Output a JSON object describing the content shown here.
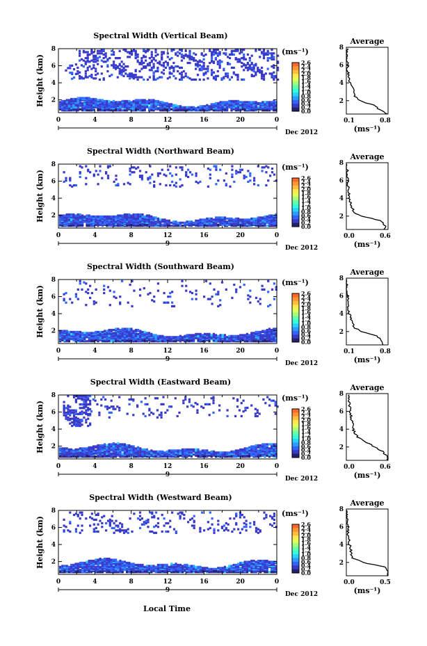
{
  "x_axis_label": "Local Time",
  "date_label": "Dec 2012",
  "colorbar": {
    "unit": "(ms⁻¹)",
    "ticks": [
      "2.6",
      "2.4",
      "2.2",
      "2.0",
      "1.8",
      "1.6",
      "1.4",
      "1.2",
      "1.0",
      "0.8",
      "0.6",
      "0.4",
      "0.2",
      "0.0"
    ],
    "colors": [
      "#ff6a2a",
      "#ff9533",
      "#ffbe3c",
      "#ffe94c",
      "#e0ff5a",
      "#a6ff7a",
      "#66ffa8",
      "#33ffd9",
      "#29d3ff",
      "#2b9dff",
      "#3265ff",
      "#3a3ac8",
      "#25206e"
    ]
  },
  "x_ticks": [
    "0",
    "4",
    "8",
    "12",
    "16",
    "20",
    "0"
  ],
  "day_label": "9",
  "avg_title": "Average",
  "avg_unit": "(ms⁻¹)",
  "chart_data": [
    {
      "type": "heatmap",
      "title": "Spectral Width (Vertical Beam)",
      "xlabel": "",
      "ylabel": "Height (km)",
      "xlim": [
        0,
        24
      ],
      "ylim": [
        0.5,
        8
      ],
      "y_ticks": [
        "8",
        "6",
        "4",
        "2"
      ],
      "layers": [
        {
          "t0": 2.0,
          "t1": 24,
          "h0": 4.5,
          "h1": 8.0,
          "density": 0.45,
          "level": 0.3
        },
        {
          "t0": 0.5,
          "t1": 2.0,
          "h0": 4.6,
          "h1": 7.2,
          "density": 0.25,
          "level": 0.3
        }
      ],
      "average": {
        "title": "Average",
        "xlim": [
          0.1,
          0.8
        ],
        "x_ticks": [
          "0.1",
          "0.8"
        ],
        "h": [
          0.5,
          1.0,
          1.5,
          2.0,
          2.5,
          3.0,
          3.5,
          4.0,
          4.5,
          5.0,
          5.5,
          6.0,
          6.5,
          7.0,
          7.5,
          8.0
        ],
        "v": [
          0.78,
          0.66,
          0.55,
          0.32,
          0.25,
          0.22,
          0.2,
          0.16,
          0.14,
          0.13,
          0.12,
          0.12,
          0.11,
          0.11,
          0.11,
          0.11
        ]
      }
    },
    {
      "type": "heatmap",
      "title": "Spectral Width (Northward Beam)",
      "xlabel": "",
      "ylabel": "Height (km)",
      "xlim": [
        0,
        24
      ],
      "ylim": [
        0.5,
        8
      ],
      "y_ticks": [
        "8",
        "6",
        "4",
        "2"
      ],
      "layers": [
        {
          "t0": 0.5,
          "t1": 24,
          "h0": 5.5,
          "h1": 8.0,
          "density": 0.18,
          "level": 0.3
        }
      ],
      "average": {
        "title": "Average",
        "xlim": [
          0.0,
          0.6
        ],
        "x_ticks": [
          "0.0",
          "0.6"
        ],
        "h": [
          0.5,
          1.0,
          1.5,
          2.0,
          2.5,
          3.0,
          3.5,
          4.0,
          4.5,
          5.0,
          5.5,
          6.0,
          6.5,
          7.0,
          7.5,
          8.0
        ],
        "v": [
          0.55,
          0.55,
          0.5,
          0.2,
          0.1,
          0.08,
          0.06,
          0.05,
          0.04,
          0.03,
          0.02,
          0.02,
          0.01,
          0.01,
          0.01,
          0.01
        ]
      }
    },
    {
      "type": "heatmap",
      "title": "Spectral Width (Southward Beam)",
      "xlabel": "",
      "ylabel": "Height (km)",
      "xlim": [
        0,
        24
      ],
      "ylim": [
        0.5,
        8
      ],
      "y_ticks": [
        "8",
        "6",
        "4",
        "2"
      ],
      "layers": [
        {
          "t0": 0.5,
          "t1": 24,
          "h0": 5.0,
          "h1": 8.0,
          "density": 0.1,
          "level": 0.3
        }
      ],
      "average": {
        "title": "Average",
        "xlim": [
          0.1,
          0.8
        ],
        "x_ticks": [
          "0.1",
          "0.8"
        ],
        "h": [
          0.5,
          1.0,
          1.5,
          2.0,
          2.5,
          3.0,
          3.5,
          4.0,
          4.5,
          5.0,
          5.5,
          6.0,
          6.5,
          7.0,
          7.5,
          8.0
        ],
        "v": [
          0.72,
          0.7,
          0.62,
          0.35,
          0.22,
          0.2,
          0.17,
          0.15,
          0.14,
          0.13,
          0.12,
          0.12,
          0.11,
          0.11,
          0.1,
          0.1
        ]
      }
    },
    {
      "type": "heatmap",
      "title": "Spectral Width (Eastward Beam)",
      "xlabel": "",
      "ylabel": "Height (km)",
      "xlim": [
        0,
        24
      ],
      "ylim": [
        0.5,
        8
      ],
      "y_ticks": [
        "8",
        "6",
        "4",
        "2"
      ],
      "layers": [
        {
          "t0": 0.5,
          "t1": 3.5,
          "h0": 4.5,
          "h1": 8.0,
          "density": 0.8,
          "level": 0.3
        },
        {
          "t0": 3.5,
          "t1": 24,
          "h0": 5.5,
          "h1": 8.0,
          "density": 0.15,
          "level": 0.3
        }
      ],
      "average": {
        "title": "Average",
        "xlim": [
          0.0,
          0.6
        ],
        "x_ticks": [
          "0.0",
          "0.6"
        ],
        "h": [
          0.5,
          1.0,
          1.5,
          2.0,
          2.5,
          3.0,
          3.5,
          4.0,
          4.5,
          5.0,
          5.5,
          6.0,
          6.5,
          7.0,
          7.5,
          8.0
        ],
        "v": [
          0.6,
          0.58,
          0.52,
          0.4,
          0.3,
          0.18,
          0.12,
          0.1,
          0.09,
          0.08,
          0.07,
          0.06,
          0.05,
          0.04,
          0.03,
          0.03
        ]
      }
    },
    {
      "type": "heatmap",
      "title": "Spectral Width (Westward Beam)",
      "xlabel": "",
      "ylabel": "Height (km)",
      "xlim": [
        0,
        24
      ],
      "ylim": [
        0.5,
        8
      ],
      "y_ticks": [
        "8",
        "6",
        "4",
        "2"
      ],
      "layers": [
        {
          "t0": 0.5,
          "t1": 24,
          "h0": 5.5,
          "h1": 8.0,
          "density": 0.22,
          "level": 0.3
        }
      ],
      "average": {
        "title": "Average",
        "xlim": [
          0.0,
          0.5
        ],
        "x_ticks": [
          "0.0",
          "0.5"
        ],
        "h": [
          0.5,
          1.0,
          1.5,
          2.0,
          2.5,
          3.0,
          3.5,
          4.0,
          4.5,
          5.0,
          5.5,
          6.0,
          6.5,
          7.0,
          7.5,
          8.0
        ],
        "v": [
          0.5,
          0.5,
          0.45,
          0.2,
          0.08,
          0.06,
          0.05,
          0.04,
          0.03,
          0.02,
          0.02,
          0.02,
          0.01,
          0.01,
          0.01,
          0.01
        ]
      }
    }
  ]
}
